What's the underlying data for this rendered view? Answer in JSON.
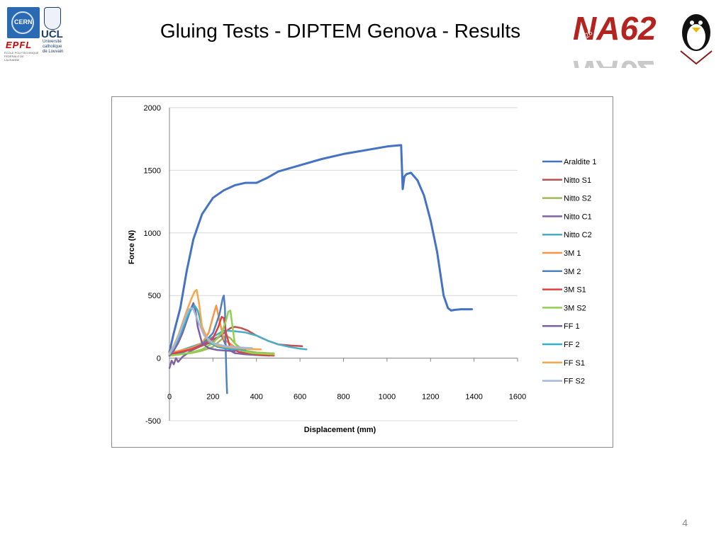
{
  "slide": {
    "title": "Gluing Tests - DIPTEM Genova - Results",
    "page_number": "4"
  },
  "logos": {
    "cern": "CERN",
    "ucl": "UCL",
    "ucl_sub": "Université catholique de Louvain",
    "epfl": "EPFL",
    "epfl_sub": "ÉCOLE POLYTECHNIQUE FÉDÉRALE DE LAUSANNE",
    "na62": "NA62",
    "na62_badge": "P326"
  },
  "colors": {
    "axis": "#868686",
    "grid": "#d9d9d9"
  },
  "chart_data": {
    "type": "line",
    "title": "",
    "xlabel": "Displacement (mm)",
    "ylabel": "Force (N)",
    "xlim": [
      0,
      1600
    ],
    "ylim": [
      -500,
      2000
    ],
    "xticks": [
      0,
      200,
      400,
      600,
      800,
      1000,
      1200,
      1400,
      1600
    ],
    "yticks": [
      -500,
      0,
      500,
      1000,
      1500,
      2000
    ],
    "grid": "horizontal",
    "legend": "right",
    "series": [
      {
        "name": "Araldite 1",
        "color": "#4472c4",
        "x": [
          0,
          20,
          50,
          80,
          110,
          150,
          200,
          250,
          300,
          350,
          400,
          450,
          500,
          600,
          700,
          800,
          900,
          1000,
          1060,
          1065,
          1072,
          1080,
          1090,
          1110,
          1140,
          1170,
          1200,
          1230,
          1260,
          1280,
          1295,
          1310,
          1340,
          1390
        ],
        "y": [
          50,
          200,
          400,
          700,
          950,
          1150,
          1280,
          1340,
          1380,
          1400,
          1400,
          1440,
          1490,
          1540,
          1590,
          1630,
          1660,
          1690,
          1700,
          1700,
          1350,
          1450,
          1470,
          1480,
          1420,
          1300,
          1100,
          850,
          500,
          400,
          380,
          385,
          390,
          390
        ]
      },
      {
        "name": "Nitto S1",
        "color": "#c0504d",
        "x": [
          0,
          50,
          100,
          150,
          200,
          250,
          280,
          300,
          330,
          360,
          400,
          450,
          500,
          560,
          610
        ],
        "y": [
          40,
          60,
          80,
          100,
          130,
          200,
          240,
          250,
          240,
          220,
          180,
          140,
          110,
          100,
          95
        ]
      },
      {
        "name": "Nitto S2",
        "color": "#9bbb59",
        "x": [
          0,
          50,
          100,
          150,
          200,
          240,
          260,
          280,
          300,
          320,
          350,
          400,
          450,
          480
        ],
        "y": [
          20,
          30,
          40,
          60,
          90,
          150,
          180,
          160,
          120,
          90,
          60,
          45,
          40,
          38
        ]
      },
      {
        "name": "Nitto C1",
        "color": "#8064a2",
        "x": [
          0,
          10,
          20,
          30,
          40,
          60,
          100,
          150,
          200,
          240,
          260,
          280,
          300,
          350,
          400,
          460
        ],
        "y": [
          -80,
          -20,
          -50,
          0,
          -30,
          10,
          60,
          100,
          150,
          180,
          100,
          60,
          40,
          30,
          25,
          20
        ]
      },
      {
        "name": "Nitto C2",
        "color": "#4bacc6",
        "x": [
          0,
          50,
          100,
          150,
          200,
          250,
          300,
          350,
          400,
          450,
          500,
          550,
          600,
          630
        ],
        "y": [
          30,
          60,
          90,
          120,
          170,
          220,
          215,
          205,
          180,
          140,
          110,
          90,
          75,
          70
        ]
      },
      {
        "name": "3M 1",
        "color": "#f79646",
        "x": [
          0,
          50,
          100,
          150,
          180,
          200,
          215,
          230,
          250,
          300,
          350,
          400,
          420
        ],
        "y": [
          40,
          60,
          80,
          120,
          200,
          330,
          420,
          300,
          150,
          90,
          75,
          70,
          70
        ]
      },
      {
        "name": "3M 2",
        "color": "#4f81bd",
        "x": [
          0,
          50,
          100,
          150,
          200,
          230,
          245,
          250,
          255,
          258,
          262,
          265
        ],
        "y": [
          20,
          40,
          70,
          110,
          200,
          350,
          480,
          500,
          400,
          100,
          -150,
          -280
        ]
      },
      {
        "name": "3M S1",
        "color": "#e04040",
        "x": [
          0,
          50,
          100,
          150,
          200,
          225,
          240,
          250,
          260,
          280,
          320,
          380,
          430,
          480
        ],
        "y": [
          30,
          50,
          70,
          100,
          160,
          250,
          330,
          320,
          200,
          80,
          50,
          35,
          25,
          20
        ]
      },
      {
        "name": "3M S2",
        "color": "#92d050",
        "x": [
          0,
          50,
          100,
          150,
          200,
          240,
          260,
          270,
          280,
          290,
          300,
          330,
          380,
          480
        ],
        "y": [
          20,
          30,
          45,
          70,
          120,
          200,
          300,
          370,
          380,
          250,
          120,
          60,
          40,
          30
        ]
      },
      {
        "name": "FF 1",
        "color": "#7f5fa6",
        "x": [
          0,
          20,
          40,
          60,
          80,
          100,
          110,
          120,
          130,
          150,
          180,
          220,
          260,
          300
        ],
        "y": [
          20,
          60,
          120,
          200,
          300,
          400,
          440,
          380,
          250,
          120,
          80,
          65,
          60,
          55
        ]
      },
      {
        "name": "FF 2",
        "color": "#31b1c9",
        "x": [
          0,
          20,
          40,
          60,
          80,
          100,
          115,
          130,
          150,
          180,
          220,
          260,
          300,
          350
        ],
        "y": [
          30,
          80,
          150,
          230,
          320,
          390,
          420,
          380,
          250,
          130,
          90,
          75,
          70,
          65
        ]
      },
      {
        "name": "FF S1",
        "color": "#f7a64b",
        "x": [
          0,
          20,
          40,
          60,
          80,
          100,
          115,
          125,
          135,
          150,
          180,
          220,
          280,
          350,
          420
        ],
        "y": [
          40,
          100,
          180,
          280,
          380,
          470,
          530,
          545,
          450,
          250,
          140,
          100,
          85,
          75,
          70
        ]
      },
      {
        "name": "FF S2",
        "color": "#a5b7da",
        "x": [
          0,
          20,
          40,
          60,
          80,
          90,
          100,
          110,
          130,
          160,
          200,
          260,
          330,
          380
        ],
        "y": [
          30,
          90,
          170,
          260,
          350,
          390,
          400,
          390,
          300,
          180,
          120,
          95,
          85,
          80
        ]
      }
    ]
  }
}
